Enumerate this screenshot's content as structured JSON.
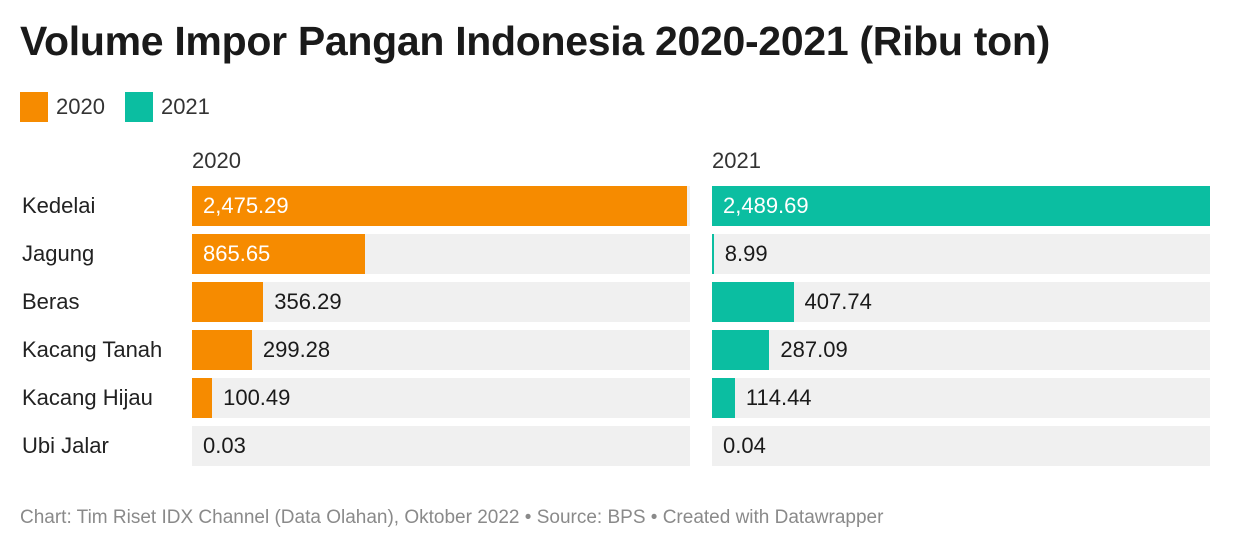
{
  "title": "Volume Impor Pangan Indonesia 2020-2021 (Ribu ton)",
  "footer": "Chart: Tim Riset IDX Channel (Data Olahan), Oktober 2022 • Source: BPS • Created with Datawrapper",
  "colors": {
    "2020": "#f68b00",
    "2021": "#0bbea1",
    "track": "#f0f0f0"
  },
  "chart_data": {
    "type": "bar",
    "orientation": "horizontal",
    "layout": "small-multiples",
    "categories": [
      "Kedelai",
      "Jagung",
      "Beras",
      "Kacang Tanah",
      "Kacang Hijau",
      "Ubi Jalar"
    ],
    "legend": [
      "2020",
      "2021"
    ],
    "series": [
      {
        "name": "2020",
        "color": "#f68b00",
        "values": [
          2475.29,
          865.65,
          356.29,
          299.28,
          100.49,
          0.03
        ],
        "labels": [
          "2,475.29",
          "865.65",
          "356.29",
          "299.28",
          "100.49",
          "0.03"
        ]
      },
      {
        "name": "2021",
        "color": "#0bbea1",
        "values": [
          2489.69,
          8.99,
          407.74,
          287.09,
          114.44,
          0.04
        ],
        "labels": [
          "2,489.69",
          "8.99",
          "407.74",
          "287.09",
          "114.44",
          "0.04"
        ]
      }
    ],
    "xlim": [
      0,
      2489.69
    ]
  }
}
